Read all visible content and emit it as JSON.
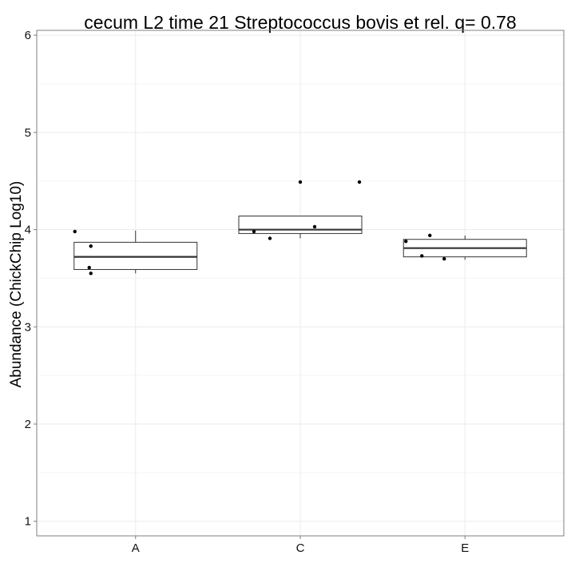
{
  "chart_data": {
    "type": "boxplot",
    "title": "cecum L2 time 21 Streptococcus bovis et rel. q= 0.78",
    "xlabel": "",
    "ylabel": "Abundance (ChickChip Log10)",
    "ylim": [
      0.85,
      6.05
    ],
    "yticks": [
      1,
      2,
      3,
      4,
      5,
      6
    ],
    "categories": [
      "A",
      "C",
      "E"
    ],
    "grid": true,
    "boxes": [
      {
        "category": "A",
        "whisker_low": 3.55,
        "q1": 3.59,
        "median": 3.72,
        "q3": 3.87,
        "whisker_high": 3.99
      },
      {
        "category": "C",
        "whisker_low": 3.91,
        "q1": 3.96,
        "median": 4.0,
        "q3": 4.14,
        "whisker_high": 4.14
      },
      {
        "category": "E",
        "whisker_low": 3.69,
        "q1": 3.72,
        "median": 3.81,
        "q3": 3.9,
        "whisker_high": 3.94
      }
    ],
    "points": [
      {
        "category": "A",
        "jitter": -0.38,
        "y": 3.98
      },
      {
        "category": "A",
        "jitter": -0.28,
        "y": 3.83
      },
      {
        "category": "A",
        "jitter": -0.29,
        "y": 3.61
      },
      {
        "category": "A",
        "jitter": -0.28,
        "y": 3.55
      },
      {
        "category": "C",
        "jitter": -0.29,
        "y": 3.98
      },
      {
        "category": "C",
        "jitter": -0.19,
        "y": 3.91
      },
      {
        "category": "C",
        "jitter": 0.0,
        "y": 4.49
      },
      {
        "category": "C",
        "jitter": 0.09,
        "y": 4.03
      },
      {
        "category": "C",
        "jitter": 0.37,
        "y": 4.49
      },
      {
        "category": "E",
        "jitter": -0.37,
        "y": 3.88
      },
      {
        "category": "E",
        "jitter": -0.27,
        "y": 3.73
      },
      {
        "category": "E",
        "jitter": -0.22,
        "y": 3.94
      },
      {
        "category": "E",
        "jitter": -0.13,
        "y": 3.7
      }
    ]
  }
}
